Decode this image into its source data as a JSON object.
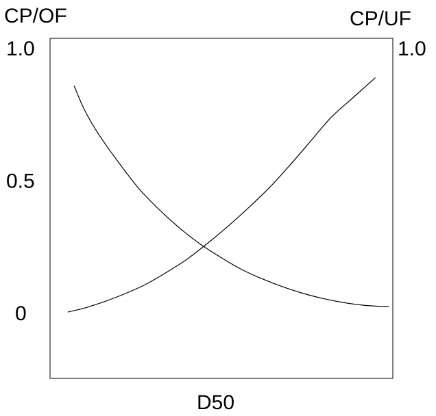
{
  "chart_data": {
    "type": "line",
    "title": "",
    "y_left_label": "CP/OF",
    "y_right_label": "CP/UF",
    "x_label": "D50",
    "y_ticks_left": [
      {
        "value": 1.0,
        "label": "1.0"
      },
      {
        "value": 0.5,
        "label": "0.5"
      },
      {
        "value": 0.0,
        "label": "0"
      }
    ],
    "y_ticks_right": [
      {
        "value": 1.0,
        "label": "1.0"
      }
    ],
    "ylim": [
      -0.23,
      1.0
    ],
    "xlim": [
      0,
      100
    ],
    "grid": false,
    "series": [
      {
        "axis": "left",
        "color": "#000000",
        "x": [
          7.0,
          10,
          14,
          20,
          26,
          32,
          38,
          44,
          50,
          56,
          62,
          68,
          74,
          80,
          86,
          92,
          98.9
        ],
        "y": [
          0.86,
          0.77,
          0.68,
          0.57,
          0.47,
          0.39,
          0.32,
          0.26,
          0.21,
          0.165,
          0.13,
          0.1,
          0.075,
          0.055,
          0.04,
          0.03,
          0.025
        ]
      },
      {
        "axis": "right",
        "color": "#000000",
        "x": [
          5.2,
          10,
          16,
          22,
          28,
          34,
          40,
          46,
          52,
          58,
          64,
          70,
          76,
          82,
          88,
          94.9
        ],
        "y": [
          0.005,
          0.02,
          0.045,
          0.075,
          0.11,
          0.155,
          0.205,
          0.265,
          0.33,
          0.4,
          0.475,
          0.56,
          0.65,
          0.74,
          0.81,
          0.89
        ]
      }
    ]
  }
}
